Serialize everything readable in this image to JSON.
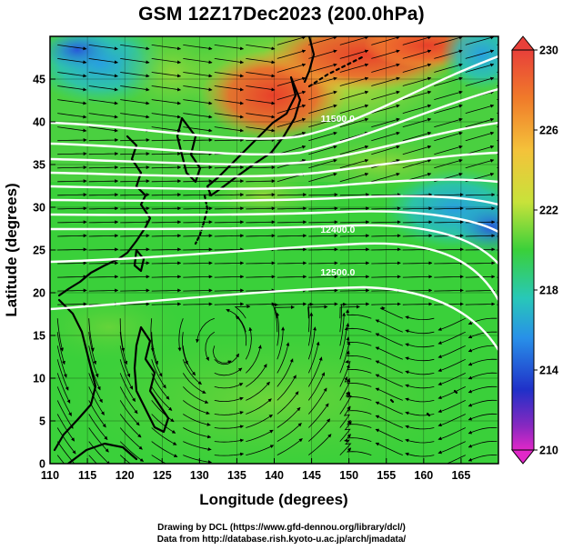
{
  "title": "GSM 12Z17Dec2023 (200.0hPa)",
  "credits": {
    "line1": "Drawing by DCL (https://www.gfd-dennou.org/library/dcl/)",
    "line2": "Data from http://database.rish.kyoto-u.ac.jp/arch/jmadata/"
  },
  "axes": {
    "xlabel": "Longitude (degrees)",
    "ylabel": "Latitude (degrees)",
    "xlim": [
      110,
      170
    ],
    "ylim": [
      0,
      50
    ],
    "xticks": [
      "110",
      "115",
      "120",
      "125",
      "130",
      "135",
      "140",
      "145",
      "150",
      "155",
      "160",
      "165"
    ],
    "yticks": [
      "0",
      "5",
      "10",
      "15",
      "20",
      "25",
      "30",
      "35",
      "40",
      "45"
    ]
  },
  "colorbar": {
    "labels": [
      "230",
      "226",
      "222",
      "218",
      "214",
      "210"
    ],
    "range": [
      210,
      230
    ]
  },
  "contour_labels": [
    {
      "text": "11500.0",
      "lon": 148.5,
      "lat": 40.0
    },
    {
      "text": "12400.0",
      "lon": 148.5,
      "lat": 27.0
    },
    {
      "text": "12500.0",
      "lon": 148.5,
      "lat": 22.0
    }
  ]
}
